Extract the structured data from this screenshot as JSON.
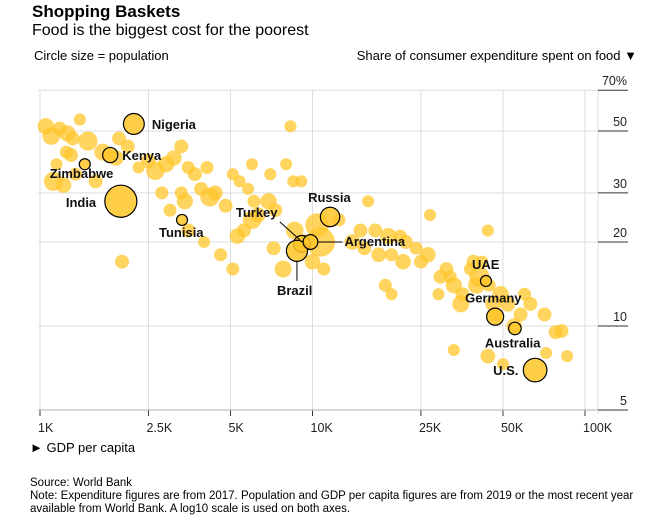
{
  "header": {
    "title": "Shopping Baskets",
    "subtitle": "Food is the biggest cost for the poorest",
    "size_note": "Circle size = population",
    "y_axis_title": "Share of consumer expenditure spent on food ▼",
    "x_axis_title": "► GDP per capita"
  },
  "footer": {
    "source": "Source: World Bank",
    "note": "Note: Expenditure figures are from 2017. Population and GDP per capita figures are from 2019 or the most recent year available from World Bank. A log10 scale is used on both axes."
  },
  "colors": {
    "bubble": "#FFC629",
    "bubble_overlap": "#FF9900",
    "highlight_stroke": "#000000",
    "grid": "#DDDDDD"
  },
  "chart_data": {
    "type": "scatter",
    "title": "Shopping Baskets",
    "subtitle": "Food is the biggest cost for the poorest",
    "xlabel": "GDP per capita",
    "ylabel": "Share of consumer expenditure spent on food",
    "x_scale": "log10",
    "y_scale": "log10",
    "xlim": [
      1000,
      110000
    ],
    "ylim": [
      4.5,
      70
    ],
    "x_ticks": [
      {
        "value": 1000,
        "label": "1K"
      },
      {
        "value": 2500,
        "label": "2.5K"
      },
      {
        "value": 5000,
        "label": "5K"
      },
      {
        "value": 10000,
        "label": "10K"
      },
      {
        "value": 25000,
        "label": "25K"
      },
      {
        "value": 50000,
        "label": "50K"
      },
      {
        "value": 100000,
        "label": "100K"
      }
    ],
    "y_ticks": [
      {
        "value": 70,
        "label": "70%"
      },
      {
        "value": 50,
        "label": "50"
      },
      {
        "value": 30,
        "label": "30"
      },
      {
        "value": 20,
        "label": "20"
      },
      {
        "value": 10,
        "label": "10"
      },
      {
        "value": 5,
        "label": "5"
      }
    ],
    "grid": true,
    "size_encoding": "population",
    "highlighted": [
      {
        "country": "Nigeria",
        "gdp": 2210,
        "food_share": 53,
        "size": 3.6
      },
      {
        "country": "Kenya",
        "gdp": 1810,
        "food_share": 41,
        "size": 1.9
      },
      {
        "country": "Zimbabwe",
        "gdp": 1460,
        "food_share": 38,
        "size": 1.0
      },
      {
        "country": "India",
        "gdp": 1980,
        "food_share": 28,
        "size": 8.5
      },
      {
        "country": "Tunisia",
        "gdp": 3320,
        "food_share": 24,
        "size": 1.0
      },
      {
        "country": "Turkey",
        "gdp": 9140,
        "food_share": 19.7,
        "size": 2.3
      },
      {
        "country": "Brazil",
        "gdp": 8770,
        "food_share": 18.6,
        "size": 3.7
      },
      {
        "country": "Argentina",
        "gdp": 9830,
        "food_share": 20,
        "size": 1.8
      },
      {
        "country": "Russia",
        "gdp": 11600,
        "food_share": 24.6,
        "size": 3.1
      },
      {
        "country": "UAE",
        "gdp": 43300,
        "food_share": 14.5,
        "size": 1.0
      },
      {
        "country": "Germany",
        "gdp": 46800,
        "food_share": 10.8,
        "size": 2.4
      },
      {
        "country": "Australia",
        "gdp": 55300,
        "food_share": 9.8,
        "size": 1.3
      },
      {
        "country": "U.S.",
        "gdp": 65600,
        "food_share": 6.95,
        "size": 4.6
      }
    ],
    "others": [
      [
        1050,
        52,
        2.2
      ],
      [
        1100,
        48,
        2.6
      ],
      [
        1180,
        51,
        1.6
      ],
      [
        1260,
        49,
        2.2
      ],
      [
        1320,
        47,
        1.6
      ],
      [
        1400,
        55,
        1.2
      ],
      [
        1500,
        46,
        3.0
      ],
      [
        1250,
        42,
        1.4
      ],
      [
        1300,
        41,
        1.6
      ],
      [
        1150,
        38,
        1.2
      ],
      [
        1120,
        33,
        3.0
      ],
      [
        1220,
        32,
        2.0
      ],
      [
        1350,
        35,
        1.4
      ],
      [
        1600,
        33,
        1.6
      ],
      [
        1700,
        42,
        2.4
      ],
      [
        1900,
        40,
        2.0
      ],
      [
        1950,
        47,
        1.6
      ],
      [
        2100,
        44,
        1.6
      ],
      [
        2300,
        37,
        1.2
      ],
      [
        2500,
        39,
        1.8
      ],
      [
        2650,
        36,
        2.8
      ],
      [
        2900,
        38,
        2.2
      ],
      [
        3100,
        40,
        2.0
      ],
      [
        3300,
        44,
        1.6
      ],
      [
        3500,
        37,
        1.4
      ],
      [
        3700,
        35,
        1.6
      ],
      [
        4100,
        37,
        1.4
      ],
      [
        3900,
        31,
        1.6
      ],
      [
        4200,
        29,
        3.0
      ],
      [
        4400,
        30,
        1.8
      ],
      [
        3300,
        30,
        1.4
      ],
      [
        3400,
        28,
        2.2
      ],
      [
        3000,
        26,
        1.4
      ],
      [
        2800,
        30,
        1.4
      ],
      [
        4800,
        27,
        1.6
      ],
      [
        5300,
        21,
        2.0
      ],
      [
        5600,
        22,
        1.6
      ],
      [
        6000,
        24,
        2.8
      ],
      [
        6300,
        25,
        2.0
      ],
      [
        5400,
        33,
        1.2
      ],
      [
        5800,
        31,
        1.2
      ],
      [
        6900,
        28,
        2.2
      ],
      [
        7300,
        26,
        1.6
      ],
      [
        6100,
        28,
        1.4
      ],
      [
        5100,
        35,
        1.2
      ],
      [
        6000,
        38,
        1.2
      ],
      [
        7000,
        35,
        1.2
      ],
      [
        8000,
        38,
        1.2
      ],
      [
        8500,
        33,
        1.2
      ],
      [
        9100,
        33,
        1.2
      ],
      [
        8300,
        52,
        1.2
      ],
      [
        7200,
        19,
        1.6
      ],
      [
        7800,
        16,
        2.4
      ],
      [
        8600,
        22,
        2.6
      ],
      [
        9300,
        20,
        2.0
      ],
      [
        10400,
        23,
        4.6
      ],
      [
        10700,
        20,
        7.0
      ],
      [
        10000,
        17,
        2.0
      ],
      [
        11000,
        16,
        1.4
      ],
      [
        12500,
        24,
        1.4
      ],
      [
        14000,
        20,
        2.0
      ],
      [
        15000,
        22,
        1.6
      ],
      [
        15500,
        19,
        1.6
      ],
      [
        17000,
        22,
        1.6
      ],
      [
        17500,
        18,
        1.8
      ],
      [
        19000,
        21,
        2.2
      ],
      [
        19500,
        18,
        1.4
      ],
      [
        21000,
        21,
        1.4
      ],
      [
        21500,
        17,
        2.0
      ],
      [
        22000,
        20,
        1.6
      ],
      [
        24000,
        19,
        1.4
      ],
      [
        16000,
        28,
        1.2
      ],
      [
        18500,
        14,
        1.4
      ],
      [
        19500,
        13,
        1.2
      ],
      [
        25000,
        17,
        1.6
      ],
      [
        26500,
        18,
        2.0
      ],
      [
        27000,
        25,
        1.2
      ],
      [
        29000,
        13,
        1.2
      ],
      [
        29500,
        15,
        1.6
      ],
      [
        31000,
        16,
        1.6
      ],
      [
        32000,
        15,
        1.4
      ],
      [
        33000,
        14,
        2.2
      ],
      [
        35000,
        12,
        2.4
      ],
      [
        35500,
        13,
        1.6
      ],
      [
        38000,
        16,
        1.4
      ],
      [
        39000,
        17,
        1.6
      ],
      [
        40000,
        14,
        2.4
      ],
      [
        41000,
        15,
        3.4
      ],
      [
        42000,
        17,
        1.2
      ],
      [
        44000,
        22,
        1.2
      ],
      [
        44500,
        14,
        1.4
      ],
      [
        46000,
        12,
        2.0
      ],
      [
        47000,
        11,
        1.6
      ],
      [
        49000,
        13,
        2.2
      ],
      [
        52000,
        12,
        2.0
      ],
      [
        55000,
        10,
        2.0
      ],
      [
        58000,
        11,
        1.6
      ],
      [
        60000,
        13,
        1.4
      ],
      [
        63000,
        12,
        1.6
      ],
      [
        71000,
        11,
        1.6
      ],
      [
        78000,
        9.5,
        1.6
      ],
      [
        82000,
        9.6,
        1.6
      ],
      [
        86000,
        7.8,
        1.2
      ],
      [
        33000,
        8.2,
        1.2
      ],
      [
        44000,
        7.8,
        1.8
      ],
      [
        50000,
        7.3,
        1.2
      ],
      [
        72000,
        8,
        1.2
      ],
      [
        2000,
        17,
        1.6
      ],
      [
        3500,
        22,
        1.6
      ],
      [
        4000,
        20,
        1.2
      ],
      [
        4600,
        18,
        1.4
      ],
      [
        5100,
        16,
        1.4
      ]
    ]
  }
}
